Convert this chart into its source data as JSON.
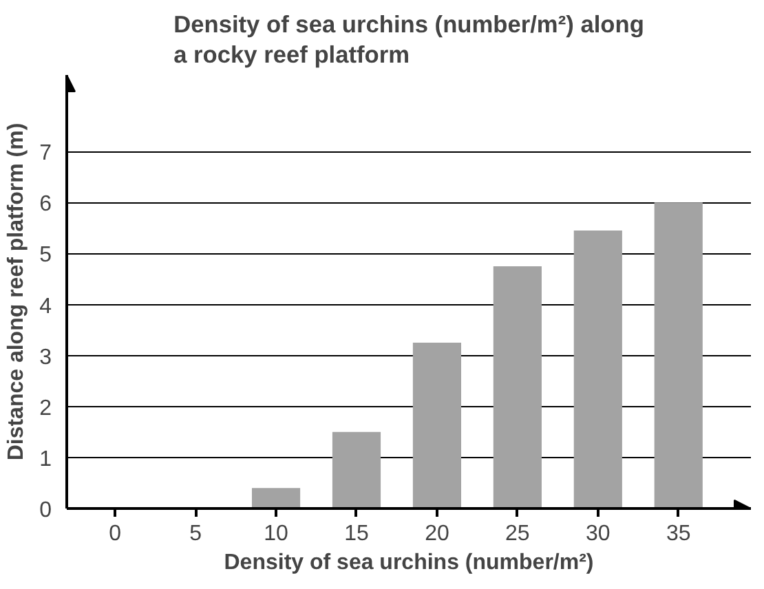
{
  "chart_data": {
    "type": "bar",
    "title": "Density of sea urchins (number/m²) along\na rocky reef platform",
    "xlabel": "Density of sea urchins (number/m²)",
    "ylabel": "Distance along reef platform (m)",
    "categories": [
      "0",
      "5",
      "10",
      "15",
      "20",
      "25",
      "30",
      "35"
    ],
    "values": [
      0,
      0,
      0.4,
      1.5,
      3.25,
      4.75,
      5.45,
      6
    ],
    "color": "#a3a3a3",
    "ylim": [
      0,
      8.5
    ],
    "yticks": [
      0,
      1,
      2,
      3,
      4,
      5,
      6,
      7
    ],
    "grid": "y"
  }
}
